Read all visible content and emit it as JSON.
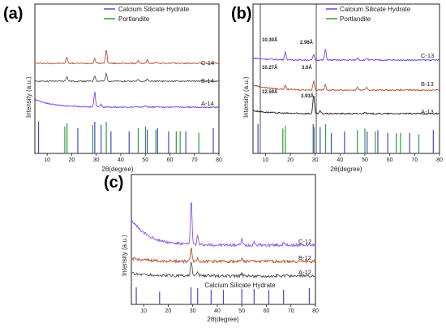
{
  "figure": {
    "panels": [
      {
        "label": "(a)",
        "xlabel": "2θ(degree)",
        "ylabel": "Intensity (a.u.)",
        "xlim": [
          5,
          80
        ],
        "xticks": [
          "10",
          "20",
          "30",
          "40",
          "50",
          "60",
          "70",
          "80"
        ],
        "tick_values": [
          10,
          20,
          30,
          40,
          50,
          60,
          70,
          80
        ],
        "legend": [
          {
            "name": "Calcium Silicate Hydrate",
            "color": "#7b3fe0"
          },
          {
            "name": "Portlandite",
            "color": "#2e9b3e"
          }
        ],
        "series": [
          {
            "name": "C-14",
            "color": "#b5502f"
          },
          {
            "name": "B-14",
            "color": "#555555"
          },
          {
            "name": "A-14",
            "color": "#7b3fe0"
          }
        ],
        "sticks": [
          {
            "x": 6.5,
            "color": "#4a46c8",
            "h": 1.0
          },
          {
            "x": 17.2,
            "color": "#2e9b3e",
            "h": 0.85
          },
          {
            "x": 18.1,
            "color": "#2e9b3e",
            "h": 0.95
          },
          {
            "x": 22.5,
            "color": "#4a46c8",
            "h": 0.8
          },
          {
            "x": 28.6,
            "color": "#2e9b3e",
            "h": 0.9
          },
          {
            "x": 29.4,
            "color": "#4a46c8",
            "h": 1.0
          },
          {
            "x": 32.0,
            "color": "#4a46c8",
            "h": 0.9
          },
          {
            "x": 34.1,
            "color": "#2e9b3e",
            "h": 1.0
          },
          {
            "x": 36.0,
            "color": "#4a46c8",
            "h": 0.7
          },
          {
            "x": 43.4,
            "color": "#4a46c8",
            "h": 0.7
          },
          {
            "x": 47.1,
            "color": "#2e9b3e",
            "h": 0.8
          },
          {
            "x": 50.1,
            "color": "#2e9b3e",
            "h": 0.85
          },
          {
            "x": 50.8,
            "color": "#4a46c8",
            "h": 0.75
          },
          {
            "x": 54.3,
            "color": "#2e9b3e",
            "h": 0.75
          },
          {
            "x": 55.0,
            "color": "#4a46c8",
            "h": 0.8
          },
          {
            "x": 59.5,
            "color": "#4a46c8",
            "h": 0.7
          },
          {
            "x": 62.6,
            "color": "#2e9b3e",
            "h": 0.7
          },
          {
            "x": 64.2,
            "color": "#2e9b3e",
            "h": 0.7
          },
          {
            "x": 66.5,
            "color": "#4a46c8",
            "h": 0.7
          },
          {
            "x": 71.8,
            "color": "#2e9b3e",
            "h": 0.65
          },
          {
            "x": 77.7,
            "color": "#4a46c8",
            "h": 0.8
          }
        ]
      },
      {
        "label": "(b)",
        "xlabel": "2θ(degree)",
        "ylabel": "Intensity (a.u.)",
        "xlim": [
          5,
          80
        ],
        "xticks": [
          "10",
          "20",
          "30",
          "40",
          "50",
          "60",
          "70",
          "80"
        ],
        "tick_values": [
          10,
          20,
          30,
          40,
          50,
          60,
          70,
          80
        ],
        "legend": [
          {
            "name": "Calcium Silicate Hydrate",
            "color": "#7b3fe0"
          },
          {
            "name": "Portlandite",
            "color": "#2e9b3e"
          }
        ],
        "series": [
          {
            "name": "C-13",
            "color": "#7b3fe0"
          },
          {
            "name": "B-13",
            "color": "#b5502f"
          },
          {
            "name": "A-13",
            "color": "#222222"
          }
        ],
        "annotations": [
          "10.30Å",
          "2.98Å",
          "10.27Å",
          "3.0Å",
          "12.59Å",
          "3.93Å"
        ],
        "sticks": [
          {
            "x": 7.0,
            "color": "#4a46c8",
            "h": 1.0
          },
          {
            "x": 17.0,
            "color": "#2e9b3e",
            "h": 0.85
          },
          {
            "x": 18.0,
            "color": "#2e9b3e",
            "h": 0.95
          },
          {
            "x": 29.2,
            "color": "#4a46c8",
            "h": 1.0
          },
          {
            "x": 29.6,
            "color": "#2e9b3e",
            "h": 0.9
          },
          {
            "x": 32.0,
            "color": "#4a46c8",
            "h": 0.9
          },
          {
            "x": 34.2,
            "color": "#2e9b3e",
            "h": 1.0
          },
          {
            "x": 36.5,
            "color": "#4a46c8",
            "h": 0.7
          },
          {
            "x": 41.8,
            "color": "#4a46c8",
            "h": 0.75
          },
          {
            "x": 47.0,
            "color": "#2e9b3e",
            "h": 0.8
          },
          {
            "x": 50.0,
            "color": "#2e9b3e",
            "h": 0.85
          },
          {
            "x": 50.9,
            "color": "#4a46c8",
            "h": 0.75
          },
          {
            "x": 54.2,
            "color": "#2e9b3e",
            "h": 0.75
          },
          {
            "x": 55.2,
            "color": "#4a46c8",
            "h": 0.8
          },
          {
            "x": 59.2,
            "color": "#4a46c8",
            "h": 0.7
          },
          {
            "x": 62.6,
            "color": "#2e9b3e",
            "h": 0.7
          },
          {
            "x": 64.3,
            "color": "#2e9b3e",
            "h": 0.7
          },
          {
            "x": 68.0,
            "color": "#4a46c8",
            "h": 0.7
          },
          {
            "x": 71.7,
            "color": "#2e9b3e",
            "h": 0.65
          },
          {
            "x": 77.5,
            "color": "#4a46c8",
            "h": 0.8
          }
        ]
      },
      {
        "label": "(c)",
        "xlabel": "2θ(degree)",
        "ylabel": "Intensity (a.u.)",
        "xlim": [
          5,
          80
        ],
        "xticks": [
          "10",
          "20",
          "30",
          "40",
          "50",
          "60",
          "70",
          "80"
        ],
        "tick_values": [
          10,
          20,
          30,
          40,
          50,
          60,
          70,
          80
        ],
        "reference_label": "Calcium Silicate Hydrate",
        "series": [
          {
            "name": "C-12",
            "color": "#8a55e6"
          },
          {
            "name": "B-12",
            "color": "#b5502f"
          },
          {
            "name": "A-12",
            "color": "#555555"
          }
        ],
        "sticks": [
          {
            "x": 7.0,
            "color": "#4a46c8",
            "h": 1.0
          },
          {
            "x": 16.5,
            "color": "#4a46c8",
            "h": 0.75
          },
          {
            "x": 29.3,
            "color": "#4a46c8",
            "h": 1.0
          },
          {
            "x": 32.0,
            "color": "#4a46c8",
            "h": 0.95
          },
          {
            "x": 37.5,
            "color": "#4a46c8",
            "h": 0.85
          },
          {
            "x": 42.5,
            "color": "#4a46c8",
            "h": 0.85
          },
          {
            "x": 50.0,
            "color": "#4a46c8",
            "h": 0.9
          },
          {
            "x": 55.0,
            "color": "#4a46c8",
            "h": 0.9
          },
          {
            "x": 61.0,
            "color": "#4a46c8",
            "h": 0.85
          },
          {
            "x": 67.0,
            "color": "#4a46c8",
            "h": 0.85
          },
          {
            "x": 77.5,
            "color": "#4a46c8",
            "h": 0.95
          }
        ]
      }
    ]
  },
  "chart_data": [
    {
      "type": "line",
      "panel": "(a)",
      "xlabel": "2θ(degree)",
      "ylabel": "Intensity (a.u.)",
      "xlim": [
        5,
        80
      ],
      "series": [
        {
          "name": "C-14",
          "color": "#b5502f",
          "peaks": [
            {
              "x": 18.0,
              "h": 0.28
            },
            {
              "x": 29.4,
              "h": 0.22
            },
            {
              "x": 34.1,
              "h": 0.6
            },
            {
              "x": 47.1,
              "h": 0.12
            },
            {
              "x": 50.8,
              "h": 0.15
            },
            {
              "x": 54.3,
              "h": 0.08
            }
          ],
          "shape": {
            "base": 0.0,
            "rise": 0.0
          }
        },
        {
          "name": "B-14",
          "color": "#555555",
          "peaks": [
            {
              "x": 18.0,
              "h": 0.22
            },
            {
              "x": 29.4,
              "h": 0.25
            },
            {
              "x": 34.1,
              "h": 0.35
            },
            {
              "x": 47.1,
              "h": 0.08
            },
            {
              "x": 50.8,
              "h": 0.1
            }
          ],
          "shape": {
            "base": 0.0,
            "rise": 0.0
          }
        },
        {
          "name": "A-14",
          "color": "#7b3fe0",
          "peaks": [
            {
              "x": 29.4,
              "h": 0.65
            },
            {
              "x": 32.0,
              "h": 0.12
            },
            {
              "x": 50.0,
              "h": 0.08
            },
            {
              "x": 55.0,
              "h": 0.04
            }
          ],
          "shape": {
            "base": 0.0,
            "rise": 0.35
          }
        }
      ]
    },
    {
      "type": "line",
      "panel": "(b)",
      "xlabel": "2θ(degree)",
      "ylabel": "Intensity (a.u.)",
      "xlim": [
        5,
        80
      ],
      "series": [
        {
          "name": "C-13",
          "color": "#7b3fe0",
          "peaks": [
            {
              "x": 18.0,
              "h": 0.3
            },
            {
              "x": 29.4,
              "h": 0.2
            },
            {
              "x": 34.1,
              "h": 0.42
            },
            {
              "x": 47.1,
              "h": 0.08
            },
            {
              "x": 50.8,
              "h": 0.08
            }
          ],
          "shape": {
            "base": 0.0,
            "rise": 0.08
          }
        },
        {
          "name": "B-13",
          "color": "#b5502f",
          "peaks": [
            {
              "x": 18.0,
              "h": 0.15
            },
            {
              "x": 29.4,
              "h": 0.35
            },
            {
              "x": 34.1,
              "h": 0.2
            },
            {
              "x": 47.1,
              "h": 0.1
            },
            {
              "x": 50.8,
              "h": 0.1
            }
          ],
          "shape": {
            "base": 0.0,
            "rise": 0.2
          }
        },
        {
          "name": "A-13",
          "color": "#222222",
          "peaks": [
            {
              "x": 29.4,
              "h": 0.7
            },
            {
              "x": 32.0,
              "h": 0.1
            },
            {
              "x": 50.0,
              "h": 0.06
            }
          ],
          "shape": {
            "base": 0.0,
            "rise": 0.12
          }
        }
      ]
    },
    {
      "type": "line",
      "panel": "(c)",
      "xlabel": "2θ(degree)",
      "ylabel": "Intensity (a.u.)",
      "xlim": [
        5,
        80
      ],
      "series": [
        {
          "name": "C-12",
          "color": "#8a55e6",
          "peaks": [
            {
              "x": 29.4,
              "h": 0.78
            },
            {
              "x": 32.0,
              "h": 0.15
            },
            {
              "x": 50.0,
              "h": 0.1
            },
            {
              "x": 55.0,
              "h": 0.06
            },
            {
              "x": 67.0,
              "h": 0.04
            }
          ],
          "shape": {
            "base": 0.0,
            "rise": 0.45
          }
        },
        {
          "name": "B-12",
          "color": "#b5502f",
          "peaks": [
            {
              "x": 29.4,
              "h": 0.25
            },
            {
              "x": 32.0,
              "h": 0.05
            },
            {
              "x": 50.0,
              "h": 0.04
            }
          ],
          "shape": {
            "base": 0.0,
            "rise": 0.05
          }
        },
        {
          "name": "A-12",
          "color": "#555555",
          "peaks": [
            {
              "x": 29.4,
              "h": 0.25
            },
            {
              "x": 32.0,
              "h": 0.06
            },
            {
              "x": 50.0,
              "h": 0.04
            }
          ],
          "shape": {
            "base": 0.0,
            "rise": 0.05
          }
        }
      ]
    }
  ]
}
